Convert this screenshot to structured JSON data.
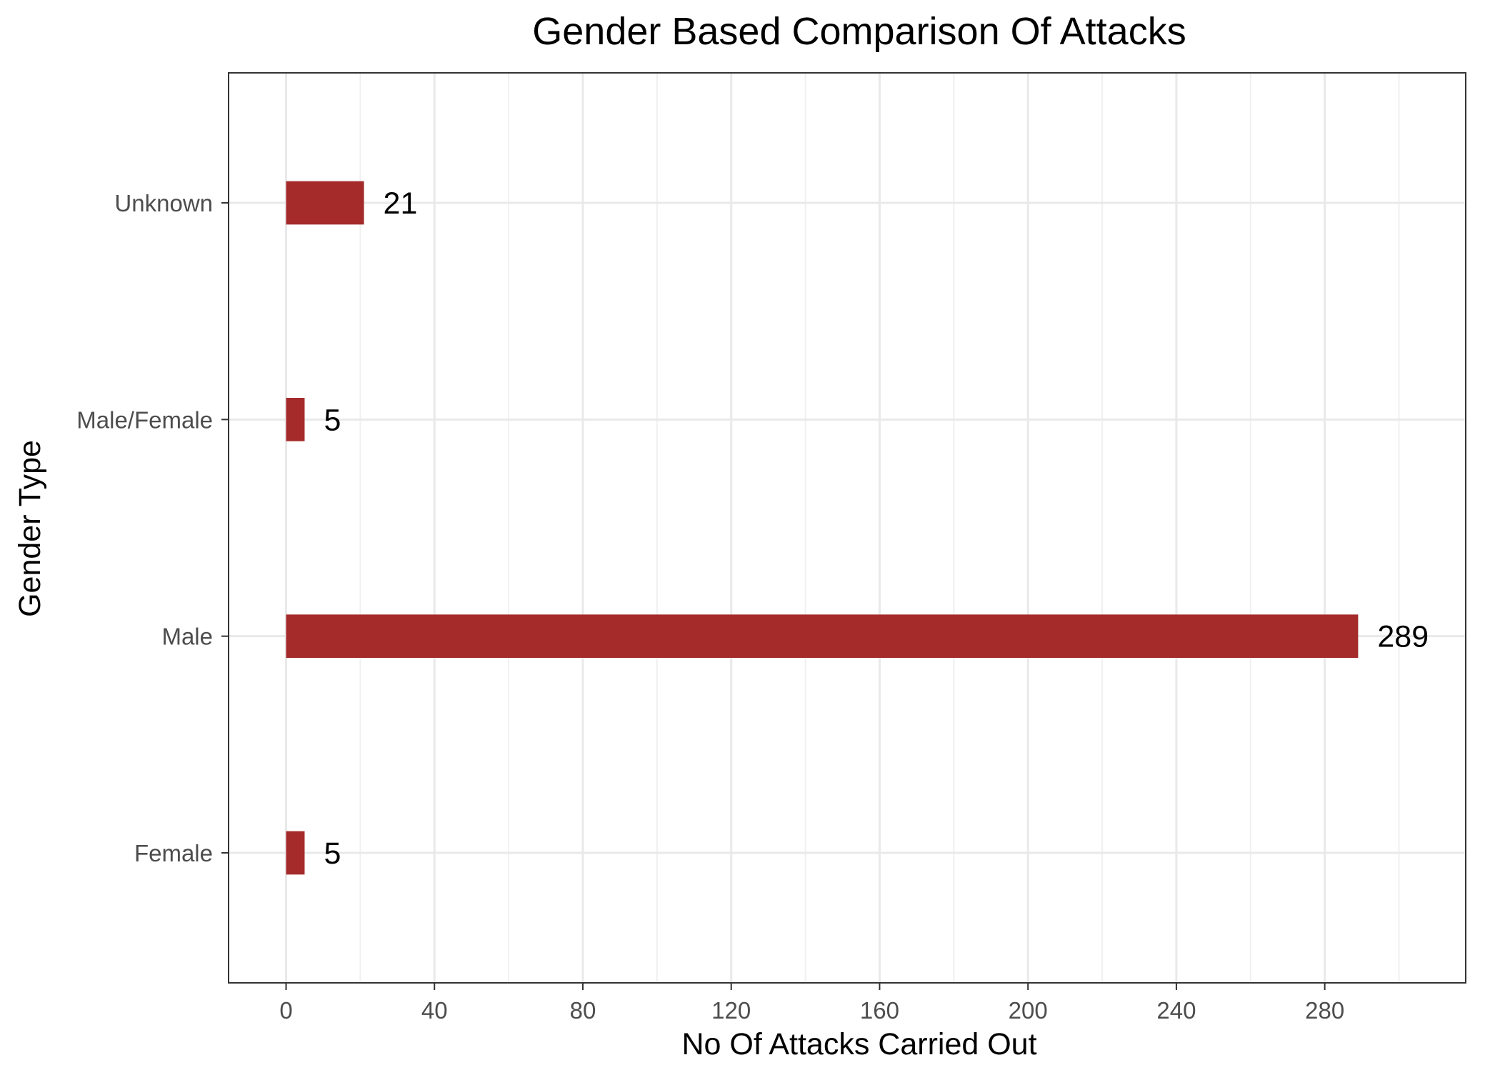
{
  "chart_data": {
    "type": "bar",
    "orientation": "horizontal",
    "title": "Gender Based Comparison Of Attacks",
    "xlabel": "No Of Attacks Carried Out",
    "ylabel": "Gender Type",
    "categories": [
      "Female",
      "Male",
      "Male/Female",
      "Unknown"
    ],
    "values": [
      5,
      289,
      5,
      21
    ],
    "data_labels": [
      "5",
      "289",
      "5",
      "21"
    ],
    "xlim": [
      -15.5,
      318
    ],
    "x_ticks": [
      0,
      40,
      80,
      120,
      160,
      200,
      240,
      280
    ],
    "x_tick_labels": [
      "0",
      "40",
      "80",
      "120",
      "160",
      "200",
      "240",
      "280"
    ],
    "grid": true,
    "legend": "none",
    "bar_color": "#a52a2a"
  }
}
